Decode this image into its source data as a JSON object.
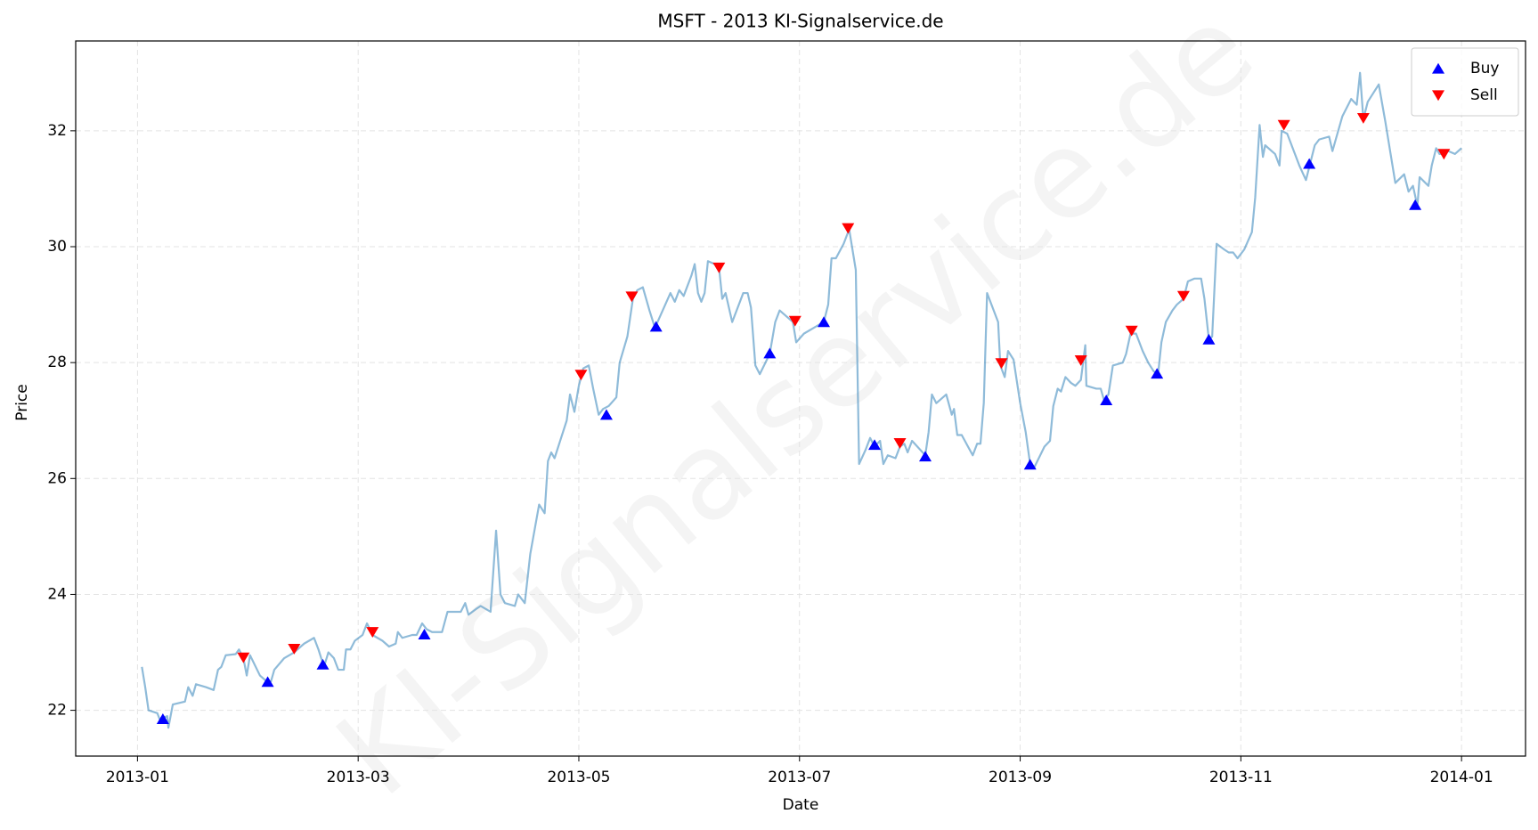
{
  "chart_data": {
    "type": "line",
    "title": "MSFT - 2013 KI-Signalservice.de",
    "xlabel": "Date",
    "ylabel": "Price",
    "watermark": "KI-Signalservice.de",
    "x": [
      0.04,
      0.07,
      0.1,
      0.18,
      0.2,
      0.27,
      0.28,
      0.32,
      0.43,
      0.46,
      0.5,
      0.53,
      0.62,
      0.69,
      0.73,
      0.76,
      0.8,
      0.89,
      0.92,
      0.96,
      0.99,
      1.02,
      1.11,
      1.17,
      1.21,
      1.24,
      1.33,
      1.42,
      1.51,
      1.6,
      1.64,
      1.69,
      1.73,
      1.78,
      1.82,
      1.87,
      1.89,
      1.93,
      1.97,
      2.04,
      2.08,
      2.13,
      2.22,
      2.28,
      2.34,
      2.36,
      2.4,
      2.49,
      2.53,
      2.58,
      2.62,
      2.67,
      2.76,
      2.81,
      2.93,
      2.97,
      3.0,
      3.07,
      3.11,
      3.2,
      3.25,
      3.29,
      3.33,
      3.42,
      3.45,
      3.51,
      3.56,
      3.64,
      3.69,
      3.72,
      3.75,
      3.78,
      3.89,
      3.92,
      3.96,
      4.0,
      4.04,
      4.09,
      4.13,
      4.18,
      4.22,
      4.27,
      4.34,
      4.37,
      4.44,
      4.49,
      4.53,
      4.58,
      4.64,
      4.69,
      4.76,
      4.83,
      4.87,
      4.91,
      4.95,
      5.02,
      5.05,
      5.08,
      5.11,
      5.14,
      5.17,
      5.23,
      5.27,
      5.3,
      5.33,
      5.39,
      5.44,
      5.49,
      5.53,
      5.56,
      5.6,
      5.64,
      5.73,
      5.78,
      5.82,
      5.91,
      5.94,
      5.97,
      6.04,
      6.13,
      6.22,
      6.26,
      6.29,
      6.33,
      6.4,
      6.45,
      6.51,
      6.54,
      6.6,
      6.64,
      6.68,
      6.73,
      6.76,
      6.8,
      6.87,
      6.91,
      6.95,
      6.98,
      7.02,
      7.14,
      7.17,
      7.2,
      7.24,
      7.33,
      7.38,
      7.4,
      7.43,
      7.47,
      7.57,
      7.61,
      7.64,
      7.67,
      7.7,
      7.75,
      7.8,
      7.82,
      7.86,
      7.89,
      7.94,
      8.0,
      8.05,
      8.09,
      8.13,
      8.22,
      8.27,
      8.3,
      8.34,
      8.37,
      8.41,
      8.46,
      8.5,
      8.55,
      8.59,
      8.6,
      8.69,
      8.73,
      8.76,
      8.8,
      8.84,
      8.93,
      8.96,
      9.0,
      9.05,
      9.11,
      9.16,
      9.21,
      9.25,
      9.28,
      9.32,
      9.38,
      9.42,
      9.48,
      9.52,
      9.58,
      9.64,
      9.67,
      9.71,
      9.74,
      9.78,
      9.85,
      9.89,
      9.93,
      9.97,
      10.03,
      10.1,
      10.13,
      10.17,
      10.2,
      10.22,
      10.31,
      10.35,
      10.37,
      10.42,
      10.47,
      10.53,
      10.59,
      10.63,
      10.67,
      10.71,
      10.8,
      10.83,
      10.86,
      10.92,
      11.0,
      11.05,
      11.08,
      11.11,
      11.15,
      11.2,
      11.25,
      11.31,
      11.34,
      11.4,
      11.48,
      11.52,
      11.56,
      11.6,
      11.62,
      11.7,
      11.73,
      11.77,
      11.8,
      11.84,
      11.88,
      11.94,
      12.0
    ],
    "series": [
      {
        "color": "#1f77b4",
        "values": [
          22.75,
          22.4,
          22.0,
          21.95,
          21.85,
          21.9,
          21.7,
          22.1,
          22.15,
          22.4,
          22.25,
          22.45,
          22.4,
          22.35,
          22.7,
          22.75,
          22.95,
          22.97,
          23.05,
          22.9,
          22.6,
          22.95,
          22.6,
          22.5,
          22.5,
          22.7,
          22.9,
          23.0,
          23.15,
          23.25,
          23.05,
          22.75,
          23.0,
          22.9,
          22.7,
          22.7,
          23.05,
          23.05,
          23.2,
          23.3,
          23.5,
          23.3,
          23.2,
          23.1,
          23.15,
          23.35,
          23.25,
          23.3,
          23.3,
          23.5,
          23.4,
          23.35,
          23.35,
          23.7,
          23.7,
          23.85,
          23.65,
          23.75,
          23.8,
          23.7,
          25.1,
          24.0,
          23.85,
          23.8,
          24.0,
          23.85,
          24.7,
          25.55,
          25.4,
          26.3,
          26.45,
          26.35,
          27.0,
          27.45,
          27.15,
          27.6,
          27.9,
          27.95,
          27.55,
          27.1,
          27.2,
          27.25,
          27.4,
          28.0,
          28.45,
          29.1,
          29.25,
          29.3,
          28.9,
          28.6,
          28.9,
          29.2,
          29.05,
          29.25,
          29.15,
          29.5,
          29.7,
          29.2,
          29.05,
          29.2,
          29.75,
          29.7,
          29.65,
          29.1,
          29.2,
          28.7,
          28.95,
          29.2,
          29.2,
          28.95,
          27.95,
          27.8,
          28.15,
          28.7,
          28.9,
          28.75,
          28.7,
          28.35,
          28.5,
          28.6,
          28.7,
          29.0,
          29.8,
          29.8,
          30.05,
          30.3,
          29.6,
          26.25,
          26.5,
          26.7,
          26.55,
          26.65,
          26.25,
          26.4,
          26.35,
          26.55,
          26.6,
          26.45,
          26.65,
          26.4,
          26.8,
          27.45,
          27.3,
          27.45,
          27.1,
          27.2,
          26.75,
          26.75,
          26.4,
          26.6,
          26.6,
          27.3,
          29.2,
          28.95,
          28.7,
          27.95,
          27.75,
          28.2,
          28.05,
          27.3,
          26.8,
          26.25,
          26.2,
          26.55,
          26.65,
          27.25,
          27.55,
          27.5,
          27.75,
          27.65,
          27.6,
          27.7,
          28.3,
          27.6,
          27.55,
          27.55,
          27.35,
          27.45,
          27.95,
          28.0,
          28.15,
          28.5,
          28.5,
          28.2,
          28.0,
          27.85,
          27.8,
          28.35,
          28.7,
          28.9,
          29.0,
          29.1,
          29.4,
          29.45,
          29.45,
          29.1,
          28.4,
          28.45,
          30.05,
          29.95,
          29.9,
          29.9,
          29.8,
          29.95,
          30.25,
          30.85,
          32.1,
          31.55,
          31.75,
          31.6,
          31.4,
          32.0,
          31.95,
          31.7,
          31.4,
          31.15,
          31.45,
          31.75,
          31.85,
          31.9,
          31.65,
          31.85,
          32.25,
          32.55,
          32.45,
          33.0,
          32.2,
          32.5,
          32.65,
          32.8,
          32.15,
          31.8,
          31.1,
          31.25,
          30.95,
          31.05,
          30.7,
          31.2,
          31.05,
          31.4,
          31.7,
          31.6,
          31.6,
          31.65,
          31.6,
          31.7
        ]
      }
    ],
    "markers": [
      {
        "name": "Buy",
        "color": "#0000ff",
        "marker": "up",
        "x": [
          0.23,
          1.18,
          1.68,
          2.6,
          4.25,
          4.7,
          5.73,
          6.22,
          6.68,
          7.14,
          8.09,
          8.78,
          9.24,
          9.71,
          10.62,
          11.58
        ],
        "values": [
          21.85,
          22.49,
          22.79,
          23.31,
          27.1,
          28.62,
          28.16,
          28.7,
          26.58,
          26.38,
          26.24,
          27.35,
          27.81,
          28.4,
          31.43,
          30.72
        ]
      },
      {
        "name": "Sell",
        "color": "#ff0000",
        "marker": "down",
        "x": [
          0.96,
          1.42,
          2.13,
          4.02,
          4.48,
          5.27,
          5.96,
          6.44,
          6.91,
          7.83,
          8.55,
          9.01,
          9.48,
          10.39,
          11.11,
          11.84
        ],
        "values": [
          22.91,
          23.06,
          23.35,
          27.79,
          29.14,
          29.64,
          28.72,
          30.32,
          26.61,
          27.99,
          28.04,
          28.55,
          29.15,
          32.1,
          32.22,
          31.6
        ]
      }
    ],
    "xlim": [
      -0.56,
      12.58
    ],
    "ylim": [
      21.21,
      33.55
    ],
    "xticks": [
      {
        "value": 0,
        "label": "2013-01"
      },
      {
        "value": 2,
        "label": "2013-03"
      },
      {
        "value": 4,
        "label": "2013-05"
      },
      {
        "value": 6,
        "label": "2013-07"
      },
      {
        "value": 8,
        "label": "2013-09"
      },
      {
        "value": 10,
        "label": "2013-11"
      },
      {
        "value": 12,
        "label": "2014-01"
      }
    ],
    "yticks": [
      22,
      24,
      26,
      28,
      30,
      32
    ],
    "grid": true,
    "legend": "upper right"
  }
}
